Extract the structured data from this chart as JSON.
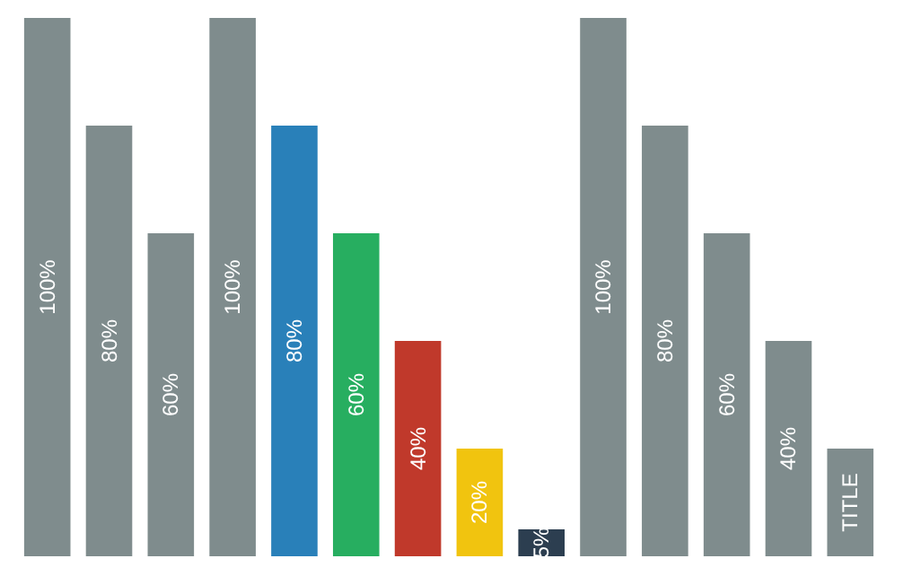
{
  "chart_data": {
    "type": "bar",
    "categories": [
      null,
      null,
      null,
      null,
      null,
      null,
      null,
      null,
      null,
      null,
      null,
      null,
      null,
      null
    ],
    "values": [
      100,
      80,
      60,
      100,
      80,
      60,
      40,
      20,
      5,
      100,
      80,
      60,
      40,
      20
    ],
    "colors": [
      "#7f8c8d",
      "#7f8c8d",
      "#7f8c8d",
      "#7f8c8d",
      "#2980b9",
      "#27ae60",
      "#c0392b",
      "#f1c40f",
      "#2c3e50",
      "#7f8c8d",
      "#7f8c8d",
      "#7f8c8d",
      "#7f8c8d",
      "#7f8c8d"
    ],
    "value_labels": [
      "100%",
      "80%",
      "60%",
      "100%",
      "80%",
      "60%",
      "40%",
      "20%",
      "5%",
      "100%",
      "80%",
      "60%",
      "40%",
      "TITLE"
    ]
  }
}
